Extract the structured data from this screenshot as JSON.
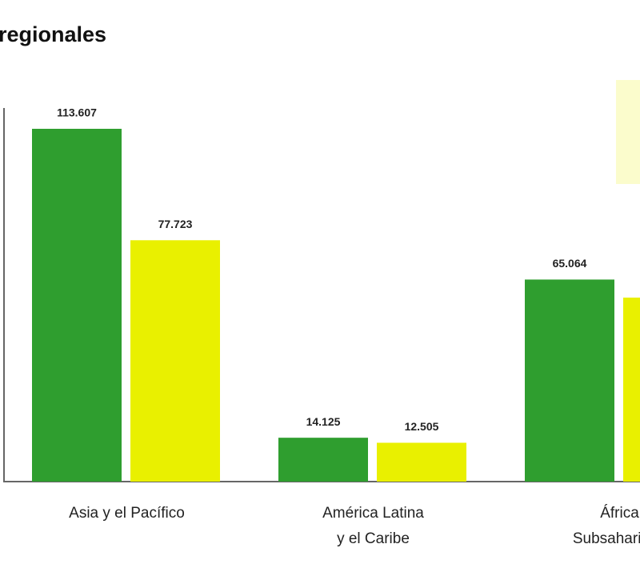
{
  "chart_data": {
    "type": "bar",
    "title": "regionales",
    "categories": [
      [
        "Asia y el Pacífico"
      ],
      [
        "América Latina",
        "y el Caribe"
      ],
      [
        "África",
        "Subsahariana"
      ]
    ],
    "series": [
      {
        "color": "#2f9e2f",
        "values": [
          113607,
          14125,
          65064
        ],
        "value_labels": [
          "113.607",
          "14.125",
          "65.064"
        ]
      },
      {
        "color": "#e9f000",
        "values": [
          77723,
          12505,
          59250
        ],
        "value_labels": [
          "77.723",
          "12.505",
          null
        ]
      }
    ]
  }
}
